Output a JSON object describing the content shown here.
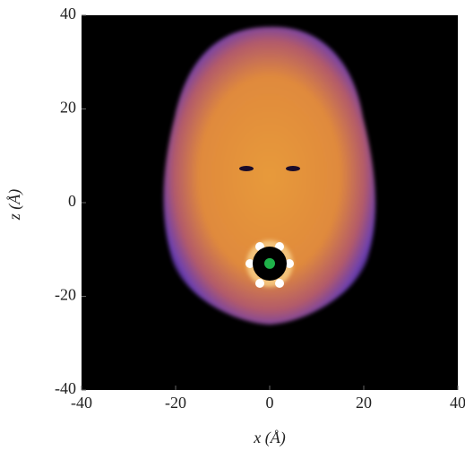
{
  "chart_data": {
    "type": "heatmap",
    "xlabel": "x (Å)",
    "ylabel": "z (Å)",
    "xlim": [
      -40,
      40
    ],
    "ylim": [
      -40,
      40
    ],
    "xticks": [
      -40,
      -20,
      0,
      20,
      40
    ],
    "yticks": [
      -40,
      -20,
      0,
      20,
      40
    ],
    "background": "#000000",
    "marker": {
      "x": 0,
      "y": -13,
      "color": "#1fb24a"
    }
  }
}
